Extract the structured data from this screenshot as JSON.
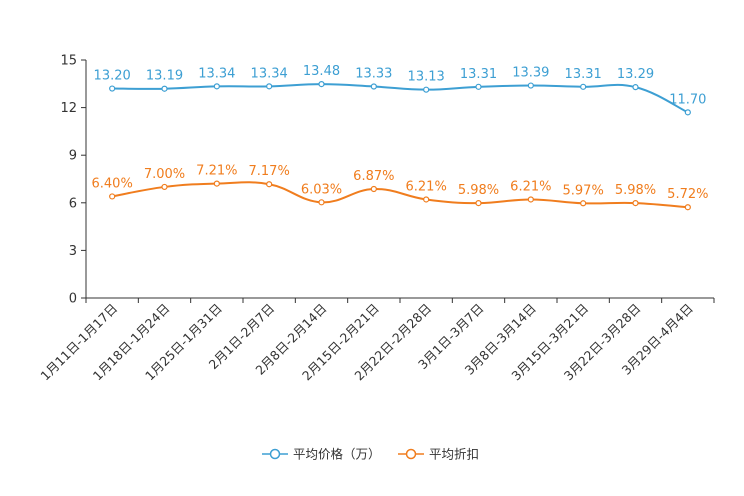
{
  "chart_data": {
    "type": "line",
    "categories": [
      "1月11日-1月17日",
      "1月18日-1月24日",
      "1月25日-1月31日",
      "2月1日-2月7日",
      "2月8日-2月14日",
      "2月15日-2月21日",
      "2月22日-2月28日",
      "3月1日-3月7日",
      "3月8日-3月14日",
      "3月15日-3月21日",
      "3月22日-3月28日",
      "3月29日-4月4日"
    ],
    "ylim": [
      0,
      15
    ],
    "yticks": [
      0,
      3,
      6,
      9,
      12,
      15
    ],
    "series": [
      {
        "name": "平均价格（万）",
        "color": "#3d9fd3",
        "values": [
          13.2,
          13.19,
          13.34,
          13.34,
          13.48,
          13.33,
          13.13,
          13.31,
          13.39,
          13.31,
          13.29,
          11.7
        ],
        "labels": [
          "13.20",
          "13.19",
          "13.34",
          "13.34",
          "13.48",
          "13.33",
          "13.13",
          "13.31",
          "13.39",
          "13.31",
          "13.29",
          "11.70"
        ]
      },
      {
        "name": "平均折扣",
        "color": "#f07d1e",
        "values": [
          6.4,
          7.0,
          7.21,
          7.17,
          6.03,
          6.87,
          6.21,
          5.98,
          6.21,
          5.97,
          5.98,
          5.72
        ],
        "labels": [
          "6.40%",
          "7.00%",
          "7.21%",
          "7.17%",
          "6.03%",
          "6.87%",
          "6.21%",
          "5.98%",
          "6.21%",
          "5.97%",
          "5.98%",
          "5.72%"
        ]
      }
    ],
    "legend": "bottom-center",
    "grid": false
  }
}
